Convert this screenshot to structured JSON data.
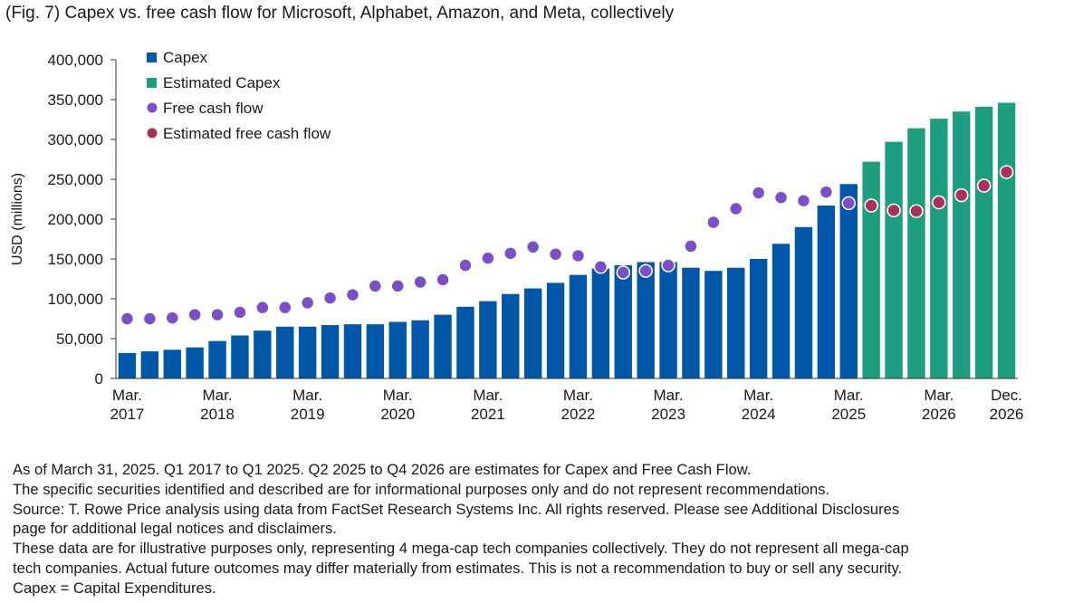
{
  "chart_data": {
    "type": "bar",
    "title": "(Fig. 7) Capex vs. free cash flow for Microsoft, Alphabet, Amazon, and Meta, collectively",
    "ylabel": "USD (millions)",
    "xlabel": "",
    "ylim": [
      0,
      400000
    ],
    "yticks": [
      "400,000",
      "350,000",
      "300,000",
      "250,000",
      "200,000",
      "150,000",
      "100,000",
      "50,000",
      "0"
    ],
    "ytick_values": [
      400000,
      350000,
      300000,
      250000,
      200000,
      150000,
      100000,
      50000,
      0
    ],
    "grid": false,
    "legend_position": "top-left",
    "periods": [
      "Q1 2017",
      "Q2 2017",
      "Q3 2017",
      "Q4 2017",
      "Q1 2018",
      "Q2 2018",
      "Q3 2018",
      "Q4 2018",
      "Q1 2019",
      "Q2 2019",
      "Q3 2019",
      "Q4 2019",
      "Q1 2020",
      "Q2 2020",
      "Q3 2020",
      "Q4 2020",
      "Q1 2021",
      "Q2 2021",
      "Q3 2021",
      "Q4 2021",
      "Q1 2022",
      "Q2 2022",
      "Q3 2022",
      "Q4 2022",
      "Q1 2023",
      "Q2 2023",
      "Q3 2023",
      "Q4 2023",
      "Q1 2024",
      "Q2 2024",
      "Q3 2024",
      "Q4 2024",
      "Q1 2025",
      "Q2 2025",
      "Q3 2025",
      "Q4 2025",
      "Q1 2026",
      "Q2 2026",
      "Q3 2026",
      "Q4 2026"
    ],
    "x_tick_labels": [
      {
        "index": 0,
        "line1": "Mar.",
        "line2": "2017"
      },
      {
        "index": 4,
        "line1": "Mar.",
        "line2": "2018"
      },
      {
        "index": 8,
        "line1": "Mar.",
        "line2": "2019"
      },
      {
        "index": 12,
        "line1": "Mar.",
        "line2": "2020"
      },
      {
        "index": 16,
        "line1": "Mar.",
        "line2": "2021"
      },
      {
        "index": 20,
        "line1": "Mar.",
        "line2": "2022"
      },
      {
        "index": 24,
        "line1": "Mar.",
        "line2": "2023"
      },
      {
        "index": 28,
        "line1": "Mar.",
        "line2": "2024"
      },
      {
        "index": 32,
        "line1": "Mar.",
        "line2": "2025"
      },
      {
        "index": 36,
        "line1": "Mar.",
        "line2": "2026"
      },
      {
        "index": 39,
        "line1": "Dec.",
        "line2": "2026"
      }
    ],
    "series": [
      {
        "name": "Capex",
        "kind": "bar",
        "color": "#0057a8",
        "start_index": 0,
        "values": [
          32000,
          34000,
          36000,
          39000,
          47000,
          54000,
          60000,
          65000,
          65000,
          67000,
          68000,
          68000,
          71000,
          73000,
          80000,
          90000,
          97000,
          106000,
          113000,
          120000,
          130000,
          138000,
          142000,
          146000,
          146000,
          139000,
          135000,
          139000,
          150000,
          169000,
          190000,
          217000,
          244000
        ]
      },
      {
        "name": "Estimated Capex",
        "kind": "bar",
        "color": "#1f9e7f",
        "start_index": 33,
        "values": [
          272000,
          297000,
          314000,
          326000,
          335000,
          341000,
          346000
        ]
      },
      {
        "name": "Free cash flow",
        "kind": "dot",
        "color": "#7b4fc6",
        "start_index": 0,
        "values": [
          75000,
          75000,
          76000,
          80000,
          80000,
          83000,
          89000,
          89000,
          95000,
          101000,
          105000,
          116000,
          116000,
          121000,
          124000,
          142000,
          151000,
          157000,
          165000,
          156000,
          154000,
          140000,
          133000,
          135000,
          142000,
          166000,
          196000,
          213000,
          233000,
          227000,
          223000,
          234000,
          220000
        ]
      },
      {
        "name": "Estimated free cash flow",
        "kind": "dot",
        "color": "#a8325e",
        "start_index": 33,
        "values": [
          217000,
          211000,
          210000,
          221000,
          230000,
          242000,
          259000
        ]
      }
    ]
  },
  "notes": [
    "As of March 31, 2025. Q1 2017 to Q1 2025. Q2 2025 to Q4 2026 are estimates for Capex and Free Cash Flow.",
    "The specific securities identified and described are for informational purposes only and do not represent recommendations.",
    "Source: T. Rowe Price analysis using data from FactSet Research Systems Inc. All rights reserved. Please see Additional Disclosures",
    "page for additional legal notices and disclaimers.",
    "These data are for illustrative purposes only, representing 4 mega-cap tech companies collectively. They do not represent all mega-cap",
    "tech companies. Actual future outcomes may differ materially from estimates. This is not a recommendation to buy or sell any security.",
    "Capex = Capital Expenditures."
  ]
}
